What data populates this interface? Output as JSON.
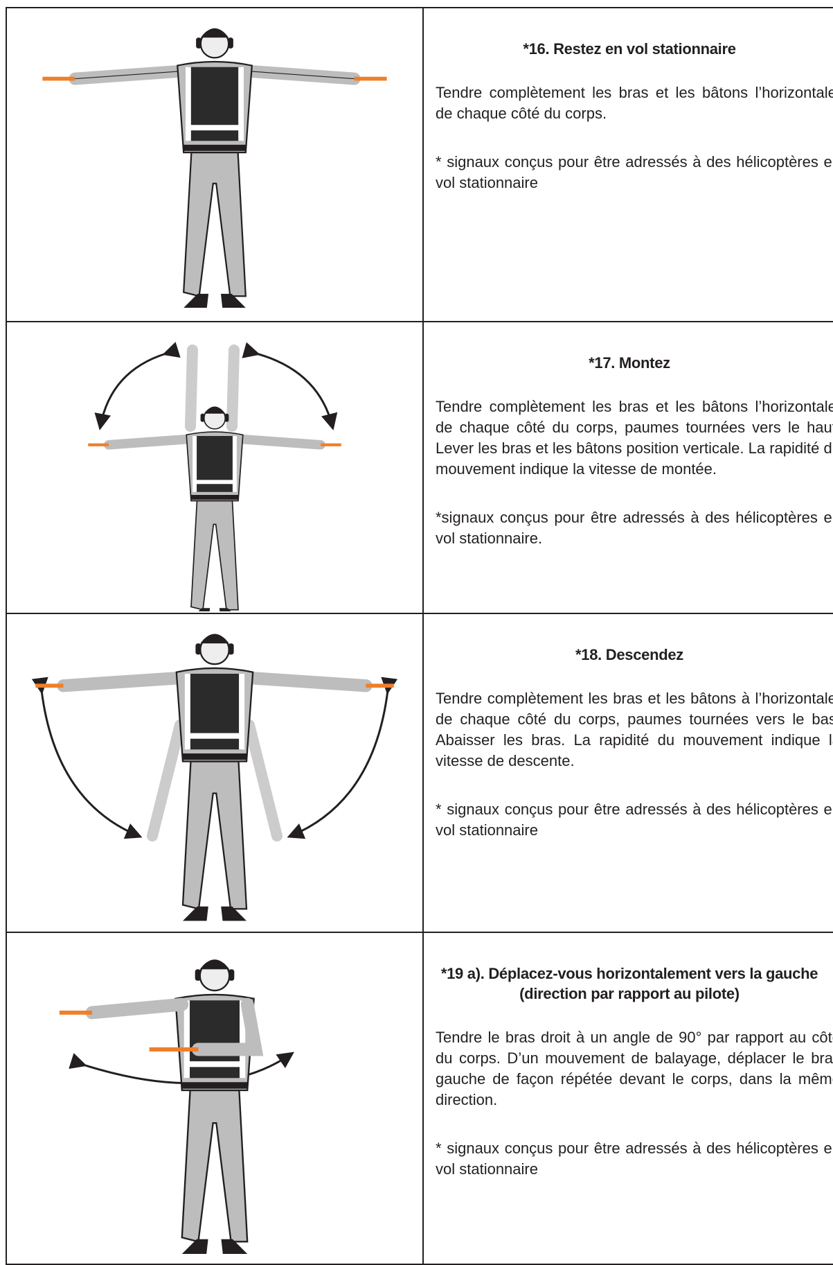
{
  "table": {
    "rows": [
      {
        "title": "*16. Restez en vol stationnaire",
        "description": "Tendre complètement les bras et les bâtons l’horizontale, de chaque côté du corps.",
        "note": "* signaux conçus pour être adressés à des hélicoptères en vol stationnaire"
      },
      {
        "title": "*17. Montez",
        "description": "Tendre complètement les bras et les bâtons l’horizontale, de chaque côté du corps, paumes tournées vers le haut. Lever les bras et les bâtons position verticale. La rapidité du mouvement indique la vitesse de montée.",
        "note": "*signaux conçus pour être adressés à des hélicoptères en vol stationnaire."
      },
      {
        "title": "*18. Descendez",
        "description": "Tendre complètement les bras et les bâtons à l’horizontale, de chaque côté du corps, paumes tournées vers le bas. Abaisser les bras. La rapidité du mouvement indique la vitesse de descente.",
        "note": "* signaux conçus pour être adressés à des hélicoptères en vol stationnaire"
      },
      {
        "title": "*19 a). Déplacez-vous horizontalement vers la gauche (direction par rapport au pilote)",
        "description": "Tendre le bras droit à un angle de 90° par rapport au côté du corps. D’un mouvement de balayage, déplacer le bras gauche de façon répétée devant le corps, dans la même direction.",
        "note": "* signaux conçus pour être adressés à des hélicoptères en vol stationnaire"
      }
    ]
  }
}
